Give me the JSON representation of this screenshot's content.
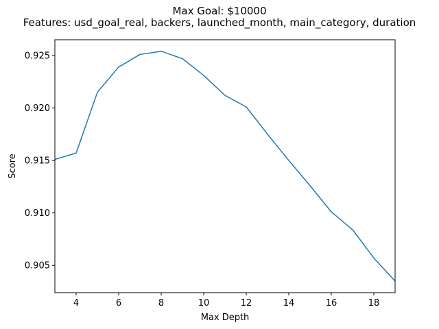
{
  "chart_data": {
    "type": "line",
    "title": "Max Goal: $10000",
    "subtitle": "Features: usd_goal_real, backers, launched_month, main_category, duration",
    "xlabel": "Max Depth",
    "ylabel": "Score",
    "xlim": [
      3,
      19
    ],
    "ylim": [
      0.9024,
      0.9265
    ],
    "x_ticks": [
      4,
      6,
      8,
      10,
      12,
      14,
      16,
      18
    ],
    "y_ticks": [
      0.905,
      0.91,
      0.915,
      0.92,
      0.925
    ],
    "y_tick_labels": [
      "0.905",
      "0.910",
      "0.915",
      "0.920",
      "0.925"
    ],
    "grid": false,
    "series": [
      {
        "color": "#1f77b4",
        "x": [
          3,
          4,
          5,
          6,
          7,
          8,
          9,
          10,
          11,
          12,
          13,
          14,
          15,
          16,
          17,
          18,
          19
        ],
        "values": [
          0.9151,
          0.9157,
          0.9215,
          0.9239,
          0.9251,
          0.9254,
          0.9247,
          0.9231,
          0.9212,
          0.9201,
          0.9175,
          0.915,
          0.9126,
          0.9101,
          0.9084,
          0.9057,
          0.9035
        ]
      }
    ]
  }
}
